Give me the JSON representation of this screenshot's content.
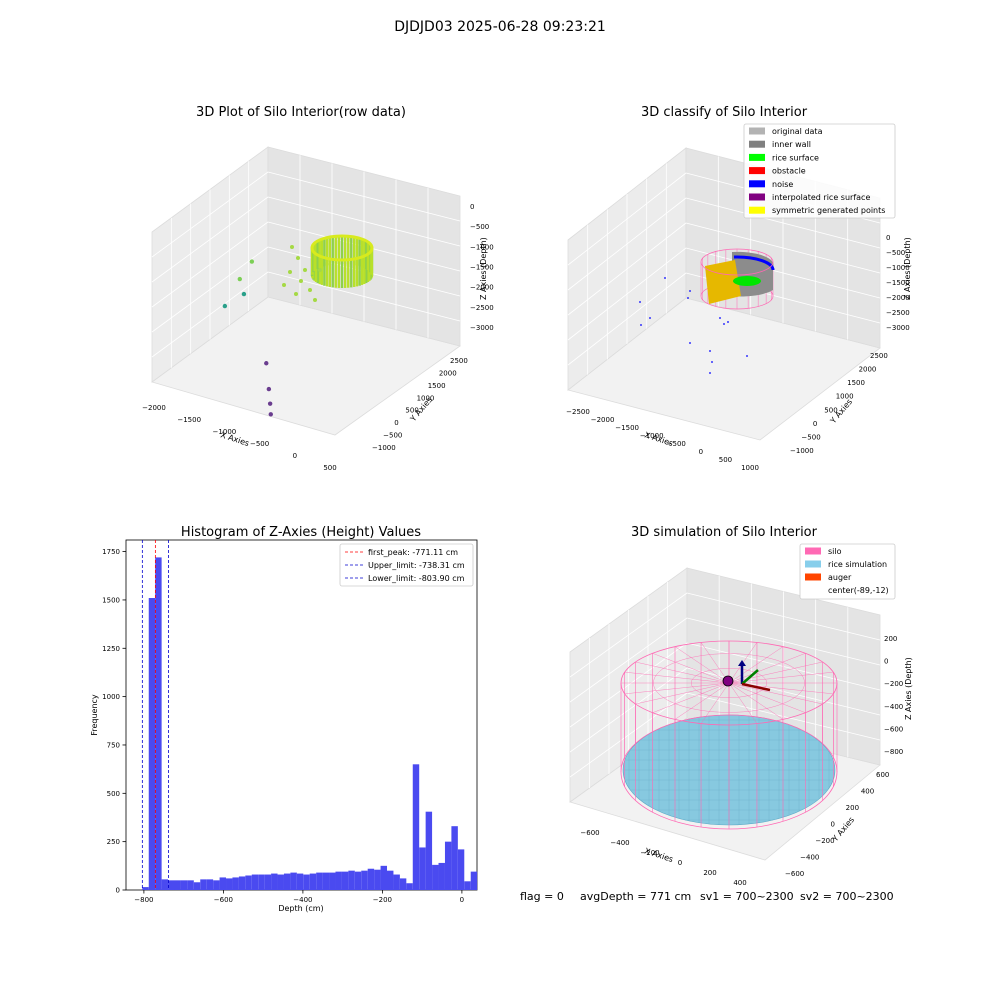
{
  "figure_title": "DJDJD03 2025-06-28 09:23:21",
  "footer": {
    "flag": "flag = 0",
    "avg_depth": "avgDepth = 771 cm",
    "sv1": "sv1 = 700~2300",
    "sv2": "sv2 = 700~2300"
  },
  "colors": {
    "bar": "#4a4af0",
    "first_peak": "#ff0000",
    "limit": "#0000cc",
    "pane_left": "#ececec",
    "pane_right": "#e4e4e4",
    "pane_floor": "#f2f2f2",
    "silo": "#ff69b4",
    "rice": "#87c9e0"
  },
  "chart_data": [
    {
      "type": "scatter",
      "panel": "3d",
      "title": "3D Plot of Silo Interior(row data)",
      "xlabel": "X Axies",
      "ylabel": "Y Axies",
      "zlabel": "Z Axies (Depth)",
      "x_ticks": [
        "−2000",
        "−1500",
        "−1000",
        "−500",
        "0",
        "500"
      ],
      "y_ticks": [
        "−1000",
        "−500",
        "0",
        "500",
        "1000",
        "1500",
        "2000",
        "2500"
      ],
      "z_ticks": [
        "0",
        "−500",
        "−1000",
        "−1500",
        "−2000",
        "−2500",
        "−3000"
      ],
      "outliers": [
        {
          "x": -1800,
          "y": 1900,
          "z": -1500
        },
        {
          "x": -1850,
          "y": 1600,
          "z": -1800
        },
        {
          "x": -1750,
          "y": 1500,
          "z": -2100
        },
        {
          "x": -1900,
          "y": 1200,
          "z": -2300
        },
        {
          "x": -900,
          "y": 200,
          "z": -2500
        },
        {
          "x": -700,
          "y": -200,
          "z": -2800
        },
        {
          "x": -600,
          "y": -400,
          "z": -3000
        },
        {
          "x": -550,
          "y": -500,
          "z": -3200
        }
      ]
    },
    {
      "type": "scatter",
      "panel": "3d",
      "title": "3D classify of Silo Interior",
      "xlabel": "X Axies",
      "ylabel": "Y Axies",
      "zlabel": "Z Axies (Depth)",
      "x_ticks": [
        "−2500",
        "−2000",
        "−1500",
        "−1000",
        "−500",
        "0",
        "500",
        "1000"
      ],
      "y_ticks": [
        "−1000",
        "−500",
        "0",
        "500",
        "1000",
        "1500",
        "2000",
        "2500"
      ],
      "z_ticks": [
        "0",
        "−500",
        "−1000",
        "−1500",
        "−2000",
        "−2500",
        "−3000"
      ],
      "legend": [
        {
          "label": "original data",
          "color": "#b3b3b3"
        },
        {
          "label": "inner wall",
          "color": "#808080"
        },
        {
          "label": "rice surface",
          "color": "#00ff00"
        },
        {
          "label": "obstacle",
          "color": "#ff0000"
        },
        {
          "label": "noise",
          "color": "#0000ff"
        },
        {
          "label": "interpolated rice surface",
          "color": "#800080"
        },
        {
          "label": "symmetric generated points",
          "color": "#ffff00"
        }
      ],
      "legend_position": "upper-right"
    },
    {
      "type": "bar",
      "title": "Histogram of Z-Axies (Height) Values",
      "xlabel": "Depth (cm)",
      "ylabel": "Frequency",
      "xlim": [
        -845,
        38
      ],
      "ylim": [
        0,
        1810
      ],
      "x_ticks": [
        -800,
        -600,
        -400,
        -200,
        0
      ],
      "x_tick_labels": [
        "−800",
        "−600",
        "−400",
        "−200",
        "0"
      ],
      "y_ticks": [
        0,
        250,
        500,
        750,
        1000,
        1250,
        1500,
        1750
      ],
      "bin_start": -804,
      "bin_width": 16.2,
      "values": [
        15,
        1510,
        1720,
        55,
        50,
        50,
        50,
        50,
        40,
        55,
        55,
        50,
        65,
        60,
        65,
        70,
        75,
        80,
        80,
        80,
        85,
        80,
        85,
        90,
        85,
        80,
        85,
        90,
        90,
        90,
        95,
        95,
        100,
        95,
        100,
        110,
        105,
        125,
        100,
        80,
        60,
        35,
        650,
        220,
        405,
        130,
        140,
        250,
        330,
        210,
        45,
        95
      ],
      "lines": [
        {
          "label": "first_peak: -771.11 cm",
          "x": -771.11,
          "color": "#ff0000"
        },
        {
          "label": "Upper_limit: -738.31 cm",
          "x": -738.31,
          "color": "#0000cc"
        },
        {
          "label": "Lower_limit: -803.90 cm",
          "x": -803.9,
          "color": "#0000cc"
        }
      ],
      "legend_position": "upper-right"
    },
    {
      "type": "scatter",
      "panel": "3d",
      "title": "3D simulation of Silo Interior",
      "xlabel": "X Axies",
      "ylabel": "Y Axies",
      "zlabel": "Z Axies (Depth)",
      "x_ticks": [
        "−600",
        "−400",
        "−200",
        "0",
        "200",
        "400"
      ],
      "y_ticks": [
        "−600",
        "−400",
        "−200",
        "0",
        "200",
        "400",
        "600"
      ],
      "z_ticks": [
        "200",
        "0",
        "−200",
        "−400",
        "−600",
        "−800"
      ],
      "legend": [
        {
          "label": "silo",
          "color": "#ff69b4"
        },
        {
          "label": "rice simulation",
          "color": "#87ceeb"
        },
        {
          "label": "auger",
          "color": "#ff4500"
        },
        {
          "label": "center(-89,-12)",
          "color": ""
        }
      ],
      "legend_position": "upper-right"
    }
  ]
}
